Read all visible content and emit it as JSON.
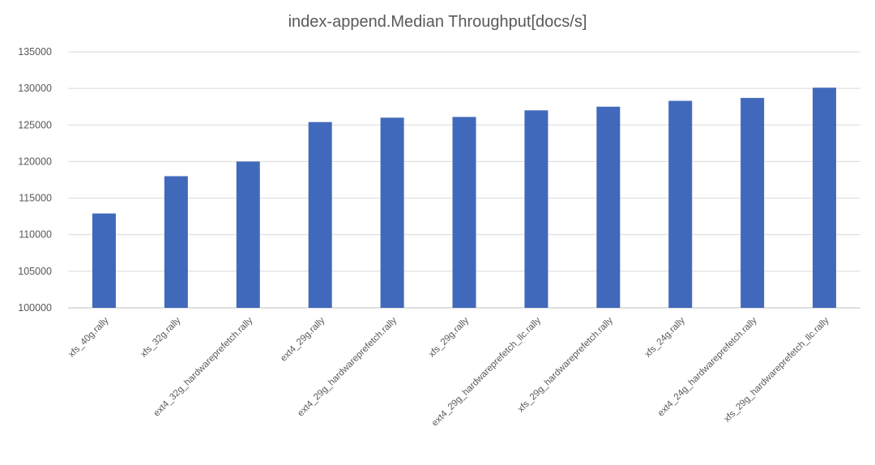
{
  "chart_data": {
    "type": "bar",
    "title": "index-append.Median Throughput[docs/s]",
    "xlabel": "",
    "ylabel": "",
    "ylim": [
      100000,
      135000
    ],
    "ytick_step": 5000,
    "grid": true,
    "legend": "none",
    "bar_color": "#4169bb",
    "categories": [
      "xfs_40g.rally",
      "xfs_32g.rally",
      "ext4_32g_hardwareprefetch.rally",
      "ext4_29g.rally",
      "ext4_29g_hardwareprefetch.rally",
      "xfs_29g.rally",
      "ext4_29g_hardwareprefetch_llc.rally",
      "xfs_29g_hardwareprefetch.rally",
      "xfs_24g.rally",
      "ext4_24g_hardwareprefetch.rally",
      "xfs_29g_hardwareprefetch_llc.rally"
    ],
    "values": [
      112900,
      118000,
      120000,
      125400,
      126000,
      126100,
      127000,
      127500,
      128300,
      128700,
      130100
    ],
    "yticks": [
      "100000",
      "105000",
      "110000",
      "115000",
      "120000",
      "125000",
      "130000",
      "135000"
    ]
  }
}
